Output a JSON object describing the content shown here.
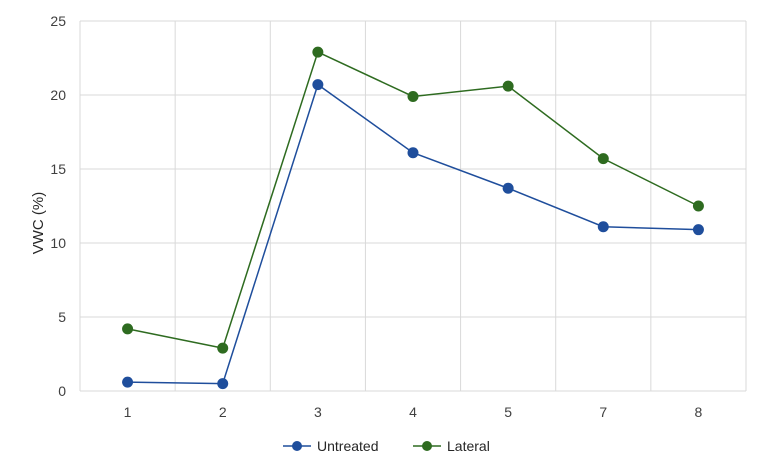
{
  "chart_data": {
    "type": "line",
    "title": "",
    "xlabel": "",
    "ylabel": "VWC (%)",
    "categories": [
      "1",
      "2",
      "3",
      "4",
      "5",
      "7",
      "8"
    ],
    "ylim": [
      0,
      25
    ],
    "yticks": [
      0,
      5,
      10,
      15,
      20,
      25
    ],
    "grid": true,
    "legend": "bottom",
    "series": [
      {
        "name": "Untreated",
        "color": "#1f4e9c",
        "values": [
          0.6,
          0.5,
          20.7,
          16.1,
          13.7,
          11.1,
          10.9
        ]
      },
      {
        "name": "Lateral",
        "color": "#2e6b20",
        "values": [
          4.2,
          2.9,
          22.9,
          19.9,
          20.6,
          15.7,
          12.5
        ]
      }
    ]
  }
}
